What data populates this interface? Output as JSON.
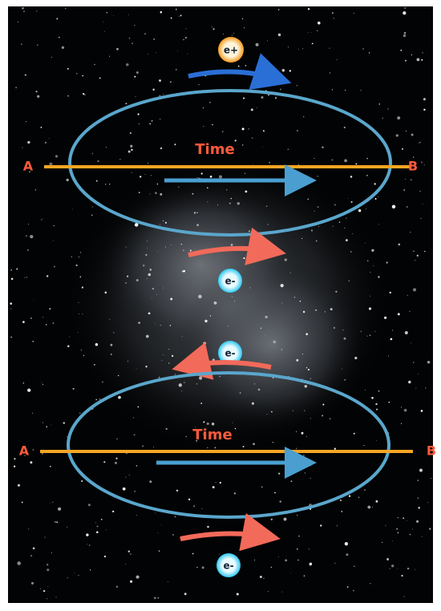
{
  "upper": {
    "particle_top": "e+",
    "time_label": "Time",
    "left_label": "A",
    "right_label": "B",
    "particle_bottom": "e-"
  },
  "lower": {
    "particle_top": "e-",
    "time_label": "Time",
    "left_label": "A",
    "right_label": "B",
    "particle_bottom": "e-"
  }
}
